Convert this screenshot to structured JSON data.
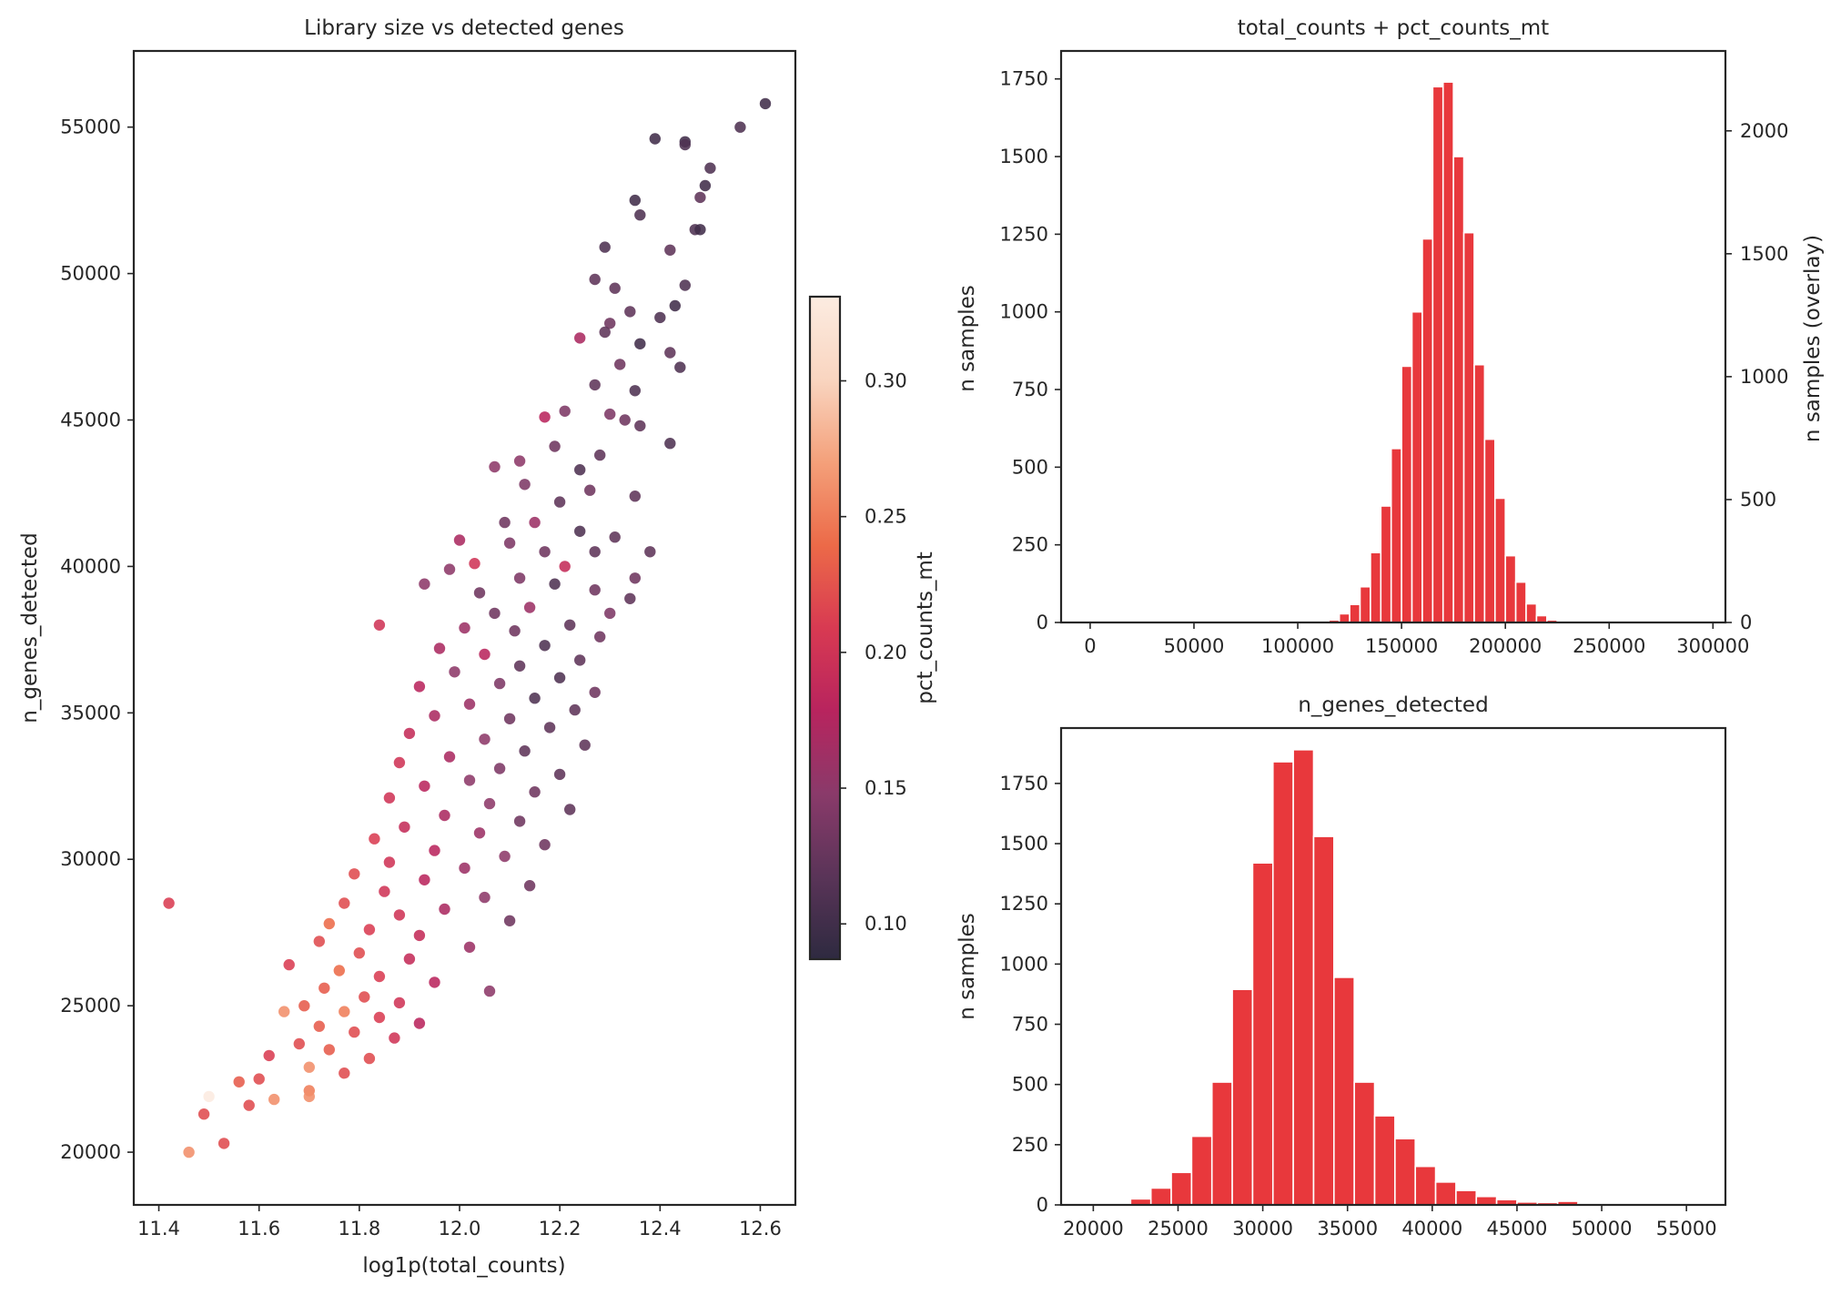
{
  "colors": {
    "bar": "#e8383c",
    "axis": "#262626",
    "cmap_stops": [
      "#2e2a40",
      "#5a3458",
      "#8a3a6a",
      "#b8245e",
      "#d83a52",
      "#ec6a48",
      "#f4a07a",
      "#f9d5c0",
      "#fcece1"
    ]
  },
  "chart_data": [
    {
      "type": "scatter",
      "title": "Library size vs detected genes",
      "xlabel": "log1p(total_counts)",
      "ylabel": "n_genes_detected",
      "xlim": [
        11.35,
        12.67
      ],
      "ylim": [
        18200,
        57600
      ],
      "xticks": [
        11.4,
        11.6,
        11.8,
        12.0,
        12.2,
        12.4,
        12.6
      ],
      "xtick_labels": [
        "11.4",
        "11.6",
        "11.8",
        "12.0",
        "12.2",
        "12.4",
        "12.6"
      ],
      "yticks": [
        20000,
        25000,
        30000,
        35000,
        40000,
        45000,
        50000,
        55000
      ],
      "ytick_labels": [
        "20000",
        "25000",
        "30000",
        "35000",
        "40000",
        "45000",
        "50000",
        "55000"
      ],
      "color_variable": "pct_counts_mt",
      "colorbar": {
        "label": "pct_counts_mt",
        "range": [
          0.087,
          0.331
        ],
        "ticks": [
          0.1,
          0.15,
          0.2,
          0.25,
          0.3
        ],
        "tick_labels": [
          "0.10",
          "0.15",
          "0.20",
          "0.25",
          "0.30"
        ]
      },
      "points": [
        [
          12.61,
          55800,
          0.1
        ],
        [
          12.56,
          55000,
          0.11
        ],
        [
          12.45,
          54500,
          0.1
        ],
        [
          12.45,
          54400,
          0.11
        ],
        [
          12.39,
          54600,
          0.1
        ],
        [
          12.5,
          53600,
          0.11
        ],
        [
          12.49,
          53000,
          0.1
        ],
        [
          12.48,
          52600,
          0.12
        ],
        [
          12.35,
          52500,
          0.1
        ],
        [
          12.36,
          52000,
          0.11
        ],
        [
          12.47,
          51500,
          0.11
        ],
        [
          12.48,
          51500,
          0.1
        ],
        [
          12.42,
          50800,
          0.12
        ],
        [
          12.29,
          50900,
          0.11
        ],
        [
          12.27,
          49800,
          0.12
        ],
        [
          12.31,
          49500,
          0.12
        ],
        [
          12.45,
          49600,
          0.11
        ],
        [
          12.43,
          48900,
          0.1
        ],
        [
          12.34,
          48700,
          0.12
        ],
        [
          12.4,
          48500,
          0.11
        ],
        [
          12.3,
          48300,
          0.13
        ],
        [
          12.24,
          47800,
          0.17
        ],
        [
          12.29,
          48000,
          0.12
        ],
        [
          12.42,
          47300,
          0.12
        ],
        [
          12.36,
          47600,
          0.1
        ],
        [
          12.44,
          46800,
          0.11
        ],
        [
          12.32,
          46900,
          0.13
        ],
        [
          12.27,
          46200,
          0.12
        ],
        [
          12.35,
          46000,
          0.11
        ],
        [
          12.21,
          45300,
          0.14
        ],
        [
          12.17,
          45100,
          0.18
        ],
        [
          12.3,
          45200,
          0.14
        ],
        [
          12.33,
          45000,
          0.13
        ],
        [
          12.36,
          44800,
          0.12
        ],
        [
          12.42,
          44200,
          0.11
        ],
        [
          12.19,
          44100,
          0.13
        ],
        [
          12.12,
          43600,
          0.15
        ],
        [
          12.28,
          43800,
          0.12
        ],
        [
          12.07,
          43400,
          0.15
        ],
        [
          12.24,
          43300,
          0.11
        ],
        [
          12.13,
          42800,
          0.14
        ],
        [
          12.26,
          42600,
          0.13
        ],
        [
          12.35,
          42400,
          0.12
        ],
        [
          12.2,
          42200,
          0.12
        ],
        [
          12.15,
          41500,
          0.16
        ],
        [
          12.09,
          41500,
          0.13
        ],
        [
          12.24,
          41200,
          0.11
        ],
        [
          12.31,
          41000,
          0.12
        ],
        [
          12.0,
          40900,
          0.17
        ],
        [
          12.1,
          40800,
          0.14
        ],
        [
          12.17,
          40500,
          0.13
        ],
        [
          12.27,
          40500,
          0.12
        ],
        [
          12.38,
          40500,
          0.12
        ],
        [
          12.03,
          40100,
          0.2
        ],
        [
          11.98,
          39900,
          0.15
        ],
        [
          12.21,
          40000,
          0.19
        ],
        [
          12.12,
          39600,
          0.14
        ],
        [
          12.35,
          39600,
          0.13
        ],
        [
          12.19,
          39400,
          0.11
        ],
        [
          12.27,
          39200,
          0.13
        ],
        [
          11.93,
          39400,
          0.15
        ],
        [
          12.04,
          39100,
          0.13
        ],
        [
          12.34,
          38900,
          0.12
        ],
        [
          12.14,
          38600,
          0.16
        ],
        [
          12.07,
          38400,
          0.13
        ],
        [
          12.3,
          38400,
          0.14
        ],
        [
          11.84,
          38000,
          0.2
        ],
        [
          12.22,
          38000,
          0.12
        ],
        [
          12.01,
          37900,
          0.16
        ],
        [
          12.11,
          37800,
          0.13
        ],
        [
          12.28,
          37600,
          0.13
        ],
        [
          12.17,
          37300,
          0.11
        ],
        [
          11.96,
          37200,
          0.17
        ],
        [
          12.05,
          37000,
          0.18
        ],
        [
          12.24,
          36800,
          0.12
        ],
        [
          12.12,
          36600,
          0.12
        ],
        [
          11.99,
          36400,
          0.15
        ],
        [
          12.2,
          36200,
          0.11
        ],
        [
          12.08,
          36000,
          0.14
        ],
        [
          11.92,
          35900,
          0.18
        ],
        [
          12.27,
          35700,
          0.13
        ],
        [
          12.15,
          35500,
          0.11
        ],
        [
          12.02,
          35300,
          0.16
        ],
        [
          12.23,
          35100,
          0.12
        ],
        [
          11.95,
          34900,
          0.17
        ],
        [
          12.1,
          34800,
          0.13
        ],
        [
          12.18,
          34500,
          0.12
        ],
        [
          11.9,
          34300,
          0.19
        ],
        [
          12.05,
          34100,
          0.15
        ],
        [
          12.25,
          33900,
          0.12
        ],
        [
          12.13,
          33700,
          0.12
        ],
        [
          11.98,
          33500,
          0.17
        ],
        [
          11.88,
          33300,
          0.2
        ],
        [
          12.08,
          33100,
          0.14
        ],
        [
          12.2,
          32900,
          0.12
        ],
        [
          12.02,
          32700,
          0.15
        ],
        [
          11.93,
          32500,
          0.18
        ],
        [
          12.15,
          32300,
          0.13
        ],
        [
          11.86,
          32100,
          0.2
        ],
        [
          12.06,
          31900,
          0.15
        ],
        [
          12.22,
          31700,
          0.12
        ],
        [
          11.97,
          31500,
          0.17
        ],
        [
          12.12,
          31300,
          0.13
        ],
        [
          11.89,
          31100,
          0.19
        ],
        [
          12.04,
          30900,
          0.16
        ],
        [
          11.83,
          30700,
          0.21
        ],
        [
          12.17,
          30500,
          0.13
        ],
        [
          11.95,
          30300,
          0.18
        ],
        [
          12.09,
          30100,
          0.15
        ],
        [
          11.86,
          29900,
          0.2
        ],
        [
          12.01,
          29700,
          0.16
        ],
        [
          11.79,
          29500,
          0.22
        ],
        [
          11.93,
          29300,
          0.18
        ],
        [
          12.14,
          29100,
          0.13
        ],
        [
          11.85,
          28900,
          0.2
        ],
        [
          12.05,
          28700,
          0.15
        ],
        [
          11.77,
          28500,
          0.22
        ],
        [
          11.97,
          28300,
          0.17
        ],
        [
          11.42,
          28500,
          0.21
        ],
        [
          11.88,
          28100,
          0.2
        ],
        [
          11.74,
          27800,
          0.24
        ],
        [
          12.1,
          27900,
          0.13
        ],
        [
          11.82,
          27600,
          0.21
        ],
        [
          11.92,
          27400,
          0.19
        ],
        [
          11.72,
          27200,
          0.22
        ],
        [
          12.02,
          27000,
          0.16
        ],
        [
          11.8,
          26800,
          0.22
        ],
        [
          11.66,
          26400,
          0.21
        ],
        [
          11.9,
          26600,
          0.19
        ],
        [
          11.76,
          26200,
          0.24
        ],
        [
          11.84,
          26000,
          0.21
        ],
        [
          11.95,
          25800,
          0.18
        ],
        [
          11.73,
          25600,
          0.23
        ],
        [
          12.06,
          25500,
          0.15
        ],
        [
          11.81,
          25300,
          0.22
        ],
        [
          11.69,
          25000,
          0.23
        ],
        [
          11.88,
          25100,
          0.2
        ],
        [
          11.77,
          24800,
          0.25
        ],
        [
          11.65,
          24800,
          0.26
        ],
        [
          11.84,
          24600,
          0.21
        ],
        [
          11.72,
          24300,
          0.23
        ],
        [
          11.92,
          24400,
          0.18
        ],
        [
          11.79,
          24100,
          0.22
        ],
        [
          11.68,
          23700,
          0.22
        ],
        [
          11.87,
          23900,
          0.2
        ],
        [
          11.74,
          23500,
          0.23
        ],
        [
          11.62,
          23300,
          0.21
        ],
        [
          11.82,
          23200,
          0.22
        ],
        [
          11.7,
          22900,
          0.26
        ],
        [
          11.6,
          22500,
          0.22
        ],
        [
          11.77,
          22700,
          0.22
        ],
        [
          11.56,
          22400,
          0.23
        ],
        [
          11.7,
          22100,
          0.25
        ],
        [
          11.63,
          21800,
          0.26
        ],
        [
          11.5,
          21900,
          0.33
        ],
        [
          11.58,
          21600,
          0.22
        ],
        [
          11.49,
          21300,
          0.22
        ],
        [
          11.7,
          21900,
          0.26
        ],
        [
          11.53,
          20300,
          0.22
        ],
        [
          11.46,
          20000,
          0.26
        ]
      ]
    },
    {
      "type": "bar",
      "title": "total_counts + pct_counts_mt",
      "xlabel": "",
      "ylabel": "n samples",
      "ylabel_right": "n samples (overlay)",
      "xlim": [
        -14000,
        306000
      ],
      "ylim": [
        0,
        1840
      ],
      "ylim_right": [
        0,
        2325
      ],
      "bin_start": 110000,
      "bin_width": 5000,
      "values": [
        3,
        8,
        28,
        58,
        115,
        225,
        375,
        560,
        825,
        1000,
        1235,
        1725,
        1740,
        1500,
        1255,
        830,
        590,
        400,
        215,
        130,
        60,
        22,
        8,
        3,
        1
      ],
      "xticks": [
        0,
        50000,
        100000,
        150000,
        200000,
        250000,
        300000
      ],
      "xtick_labels": [
        "0",
        "50000",
        "100000",
        "150000",
        "200000",
        "250000",
        "300000"
      ],
      "yticks": [
        0,
        250,
        500,
        750,
        1000,
        1250,
        1500,
        1750
      ],
      "ytick_labels": [
        "0",
        "250",
        "500",
        "750",
        "1000",
        "1250",
        "1500",
        "1750"
      ],
      "yticks_right": [
        0,
        500,
        1000,
        1500,
        2000
      ],
      "ytick_labels_right": [
        "0",
        "500",
        "1000",
        "1500",
        "2000"
      ]
    },
    {
      "type": "bar",
      "title": "n_genes_detected",
      "xlabel": "",
      "ylabel": "n samples",
      "xlim": [
        18100,
        57300
      ],
      "ylim": [
        0,
        1980
      ],
      "bin_start": 19800,
      "bin_width": 1200,
      "values": [
        2,
        5,
        25,
        70,
        135,
        285,
        510,
        895,
        1420,
        1840,
        1890,
        1530,
        945,
        510,
        370,
        275,
        160,
        95,
        60,
        35,
        22,
        12,
        10,
        15,
        5,
        3,
        1,
        1,
        0,
        1,
        0
      ],
      "xticks": [
        20000,
        25000,
        30000,
        35000,
        40000,
        45000,
        50000,
        55000
      ],
      "xtick_labels": [
        "20000",
        "25000",
        "30000",
        "35000",
        "40000",
        "45000",
        "50000",
        "55000"
      ],
      "yticks": [
        0,
        250,
        500,
        750,
        1000,
        1250,
        1500,
        1750
      ],
      "ytick_labels": [
        "0",
        "250",
        "500",
        "750",
        "1000",
        "1250",
        "1500",
        "1750"
      ]
    }
  ]
}
